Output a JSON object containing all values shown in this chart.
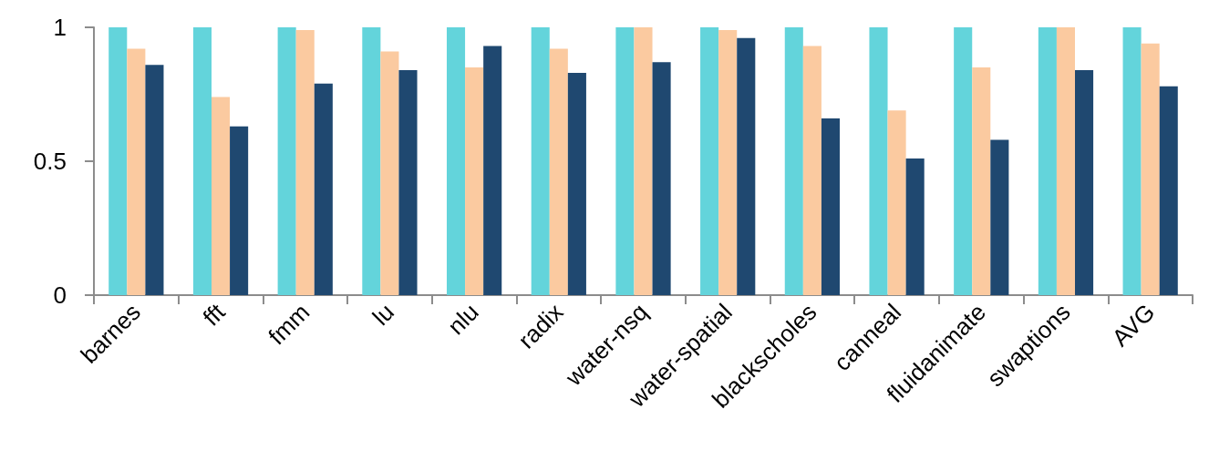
{
  "chart_data": {
    "type": "bar",
    "categories": [
      "barnes",
      "fft",
      "fmm",
      "lu",
      "nlu",
      "radix",
      "water-nsq",
      "water-spatial",
      "blackscholes",
      "canneal",
      "fluidanimate",
      "swaptions",
      "AVG"
    ],
    "series": [
      {
        "color": "#63d4db",
        "values": [
          1,
          1,
          1,
          1,
          1,
          1,
          1,
          1,
          1,
          1,
          1,
          1,
          1
        ]
      },
      {
        "color": "#fbcaa0",
        "values": [
          0.92,
          0.74,
          0.99,
          0.91,
          0.85,
          0.92,
          1.0,
          0.99,
          0.93,
          0.69,
          0.85,
          1.0,
          0.94
        ]
      },
      {
        "color": "#1f4870",
        "values": [
          0.86,
          0.63,
          0.79,
          0.84,
          0.93,
          0.83,
          0.87,
          0.96,
          0.66,
          0.51,
          0.58,
          0.84,
          0.78
        ]
      }
    ],
    "ylim": [
      0,
      1
    ],
    "yticks": [
      0,
      0.5,
      1
    ]
  }
}
